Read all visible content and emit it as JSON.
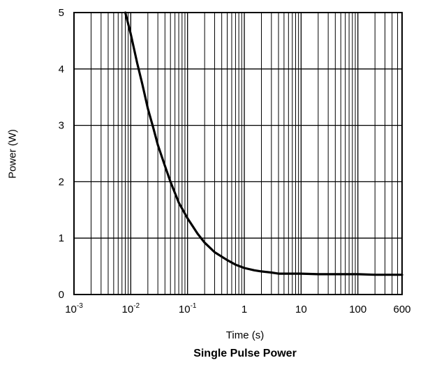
{
  "chart_data": {
    "type": "line",
    "title": "Single Pulse Power",
    "xlabel": "Time (s)",
    "ylabel": "Power (W)",
    "x_scale": "log",
    "xlim": [
      0.001,
      600
    ],
    "ylim": [
      0,
      5
    ],
    "grid": true,
    "x_ticks": [
      {
        "value": 0.001,
        "base": "10",
        "exp": "-3"
      },
      {
        "value": 0.01,
        "base": "10",
        "exp": "-2"
      },
      {
        "value": 0.1,
        "base": "10",
        "exp": "-1"
      },
      {
        "value": 1,
        "base": "1",
        "exp": ""
      },
      {
        "value": 10,
        "base": "10",
        "exp": ""
      },
      {
        "value": 100,
        "base": "100",
        "exp": ""
      },
      {
        "value": 600,
        "base": "600",
        "exp": ""
      }
    ],
    "y_ticks": [
      "0",
      "1",
      "2",
      "3",
      "4",
      "5"
    ],
    "series": [
      {
        "x": [
          0.008,
          0.01,
          0.013,
          0.016,
          0.02,
          0.025,
          0.03,
          0.04,
          0.05,
          0.07,
          0.1,
          0.15,
          0.2,
          0.3,
          0.5,
          0.7,
          1,
          1.5,
          2,
          3,
          4,
          6,
          10,
          20,
          50,
          100,
          200,
          600
        ],
        "y": [
          5.0,
          4.62,
          4.1,
          3.73,
          3.3,
          2.95,
          2.65,
          2.28,
          2.0,
          1.63,
          1.35,
          1.08,
          0.92,
          0.75,
          0.61,
          0.53,
          0.47,
          0.43,
          0.41,
          0.39,
          0.37,
          0.37,
          0.37,
          0.36,
          0.36,
          0.36,
          0.35,
          0.35
        ]
      }
    ]
  }
}
